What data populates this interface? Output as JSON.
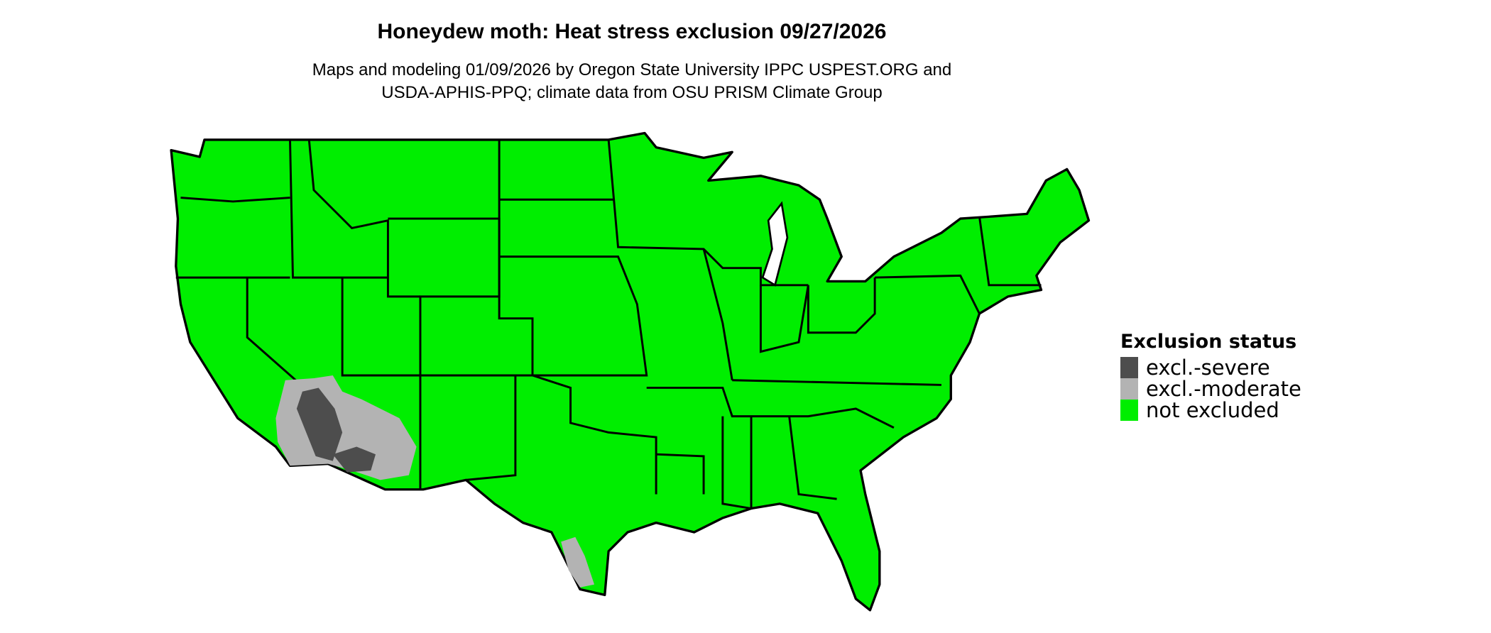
{
  "title": "Honeydew moth: Heat stress exclusion 09/27/2026",
  "subtitle_lines": [
    "Maps and modeling 01/09/2026 by Oregon State University IPPC USPEST.ORG and",
    "USDA-APHIS-PPQ; climate data from OSU PRISM Climate Group"
  ],
  "chart_data": {
    "type": "map",
    "region": "Contiguous United States",
    "legend": {
      "title": "Exclusion status",
      "placement": "right",
      "entries": [
        {
          "label": "excl.-severe",
          "color": "#4d4d4d"
        },
        {
          "label": "excl.-moderate",
          "color": "#b3b3b3"
        },
        {
          "label": "not excluded",
          "color": "#00ee00"
        }
      ]
    },
    "dominant_class": "not excluded",
    "excluded_areas": [
      {
        "area": "Southeastern California / southwestern Arizona / southern Nevada",
        "classes": [
          "excl.-severe",
          "excl.-moderate"
        ]
      },
      {
        "area": "South Texas",
        "classes": [
          "excl.-moderate"
        ]
      }
    ]
  }
}
